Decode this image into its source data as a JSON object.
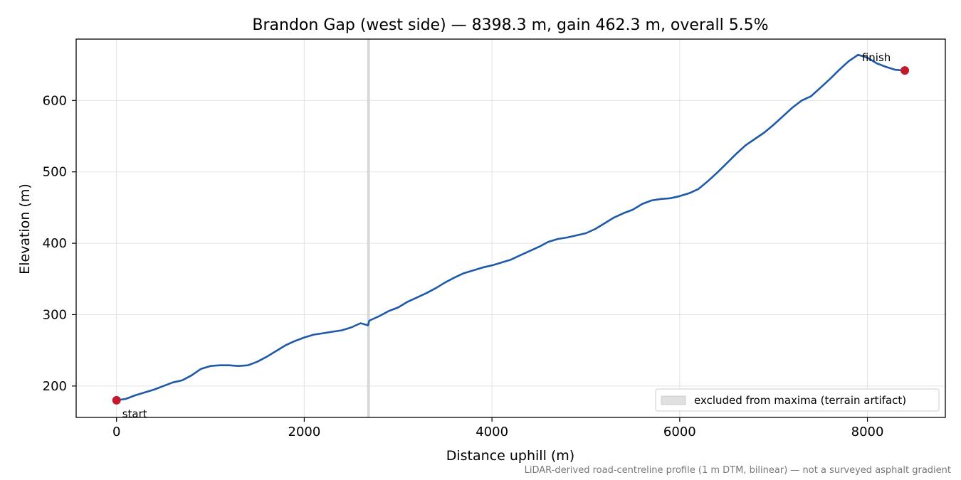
{
  "chart_data": {
    "type": "line",
    "title": "Brandon Gap (west side) — 8398.3 m, gain 462.3 m, overall 5.5%",
    "xlabel": "Distance uphill (m)",
    "ylabel": "Elevation (m)",
    "xlim": [
      -430,
      8830
    ],
    "ylim": [
      156,
      686
    ],
    "xticks": [
      0,
      2000,
      4000,
      6000,
      8000
    ],
    "yticks": [
      200,
      300,
      400,
      500,
      600
    ],
    "grid": true,
    "series": [
      {
        "color": "#1f5aa8",
        "x": [
          0,
          100,
          200,
          300,
          400,
          500,
          600,
          700,
          800,
          900,
          1000,
          1100,
          1200,
          1300,
          1400,
          1500,
          1600,
          1700,
          1800,
          1900,
          2000,
          2100,
          2200,
          2300,
          2400,
          2500,
          2600,
          2680,
          2690,
          2700,
          2800,
          2900,
          3000,
          3100,
          3200,
          3300,
          3400,
          3500,
          3600,
          3700,
          3800,
          3900,
          4000,
          4100,
          4200,
          4300,
          4400,
          4500,
          4600,
          4700,
          4800,
          4900,
          5000,
          5100,
          5200,
          5300,
          5400,
          5500,
          5600,
          5700,
          5800,
          5900,
          6000,
          6100,
          6200,
          6300,
          6400,
          6500,
          6600,
          6700,
          6800,
          6900,
          7000,
          7100,
          7200,
          7300,
          7400,
          7500,
          7600,
          7700,
          7800,
          7900,
          8000,
          8100,
          8200,
          8300,
          8398.3
        ],
        "y": [
          180,
          182,
          187,
          191,
          195,
          200,
          205,
          208,
          215,
          224,
          228,
          229,
          229,
          228,
          229,
          234,
          241,
          249,
          257,
          263,
          268,
          272,
          274,
          276,
          278,
          282,
          288,
          285,
          291,
          292,
          298,
          305,
          310,
          318,
          324,
          330,
          337,
          345,
          352,
          358,
          362,
          366,
          369,
          373,
          377,
          383,
          389,
          395,
          402,
          406,
          408,
          411,
          414,
          420,
          428,
          436,
          442,
          447,
          455,
          460,
          462,
          463,
          466,
          470,
          476,
          487,
          499,
          512,
          525,
          537,
          546,
          555,
          566,
          578,
          590,
          600,
          606,
          618,
          630,
          643,
          655,
          664,
          660,
          652,
          647,
          643,
          642
        ]
      }
    ],
    "annotations": {
      "start": {
        "label": "start",
        "x": 0,
        "y": 180
      },
      "finish": {
        "label": "finish",
        "x": 8398.3,
        "y": 642
      }
    },
    "marker_color": "#c21a2c",
    "excluded_band": {
      "x": [
        2670,
        2700
      ],
      "color": "#d9d9d9"
    },
    "legend": {
      "position": "lower right",
      "entries": [
        "excluded from maxima (terrain artifact)"
      ]
    },
    "footnote": "LiDAR-derived road-centreline profile (1 m DTM, bilinear) — not a surveyed asphalt gradient"
  }
}
